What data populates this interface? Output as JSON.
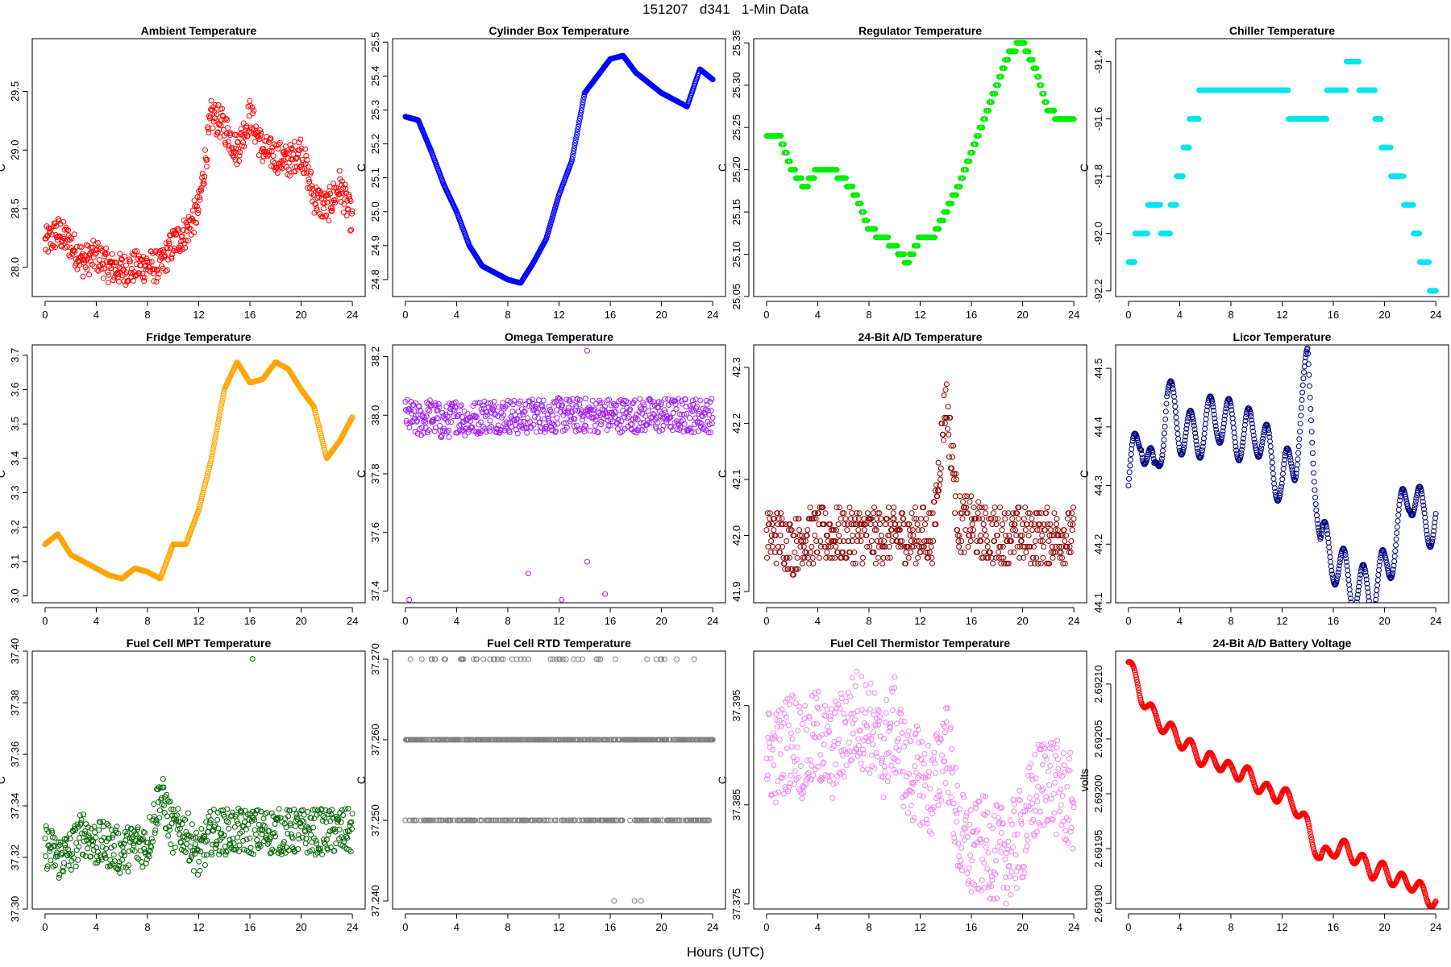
{
  "figure": {
    "title": "151207   d341   1-Min Data",
    "xlabel": "Hours (UTC)"
  },
  "chart_data": [
    {
      "type": "scatter",
      "title": "Ambient Temperature",
      "ylabel": "C",
      "color": "#ff0000",
      "x": [
        0,
        1,
        2,
        3,
        4,
        5,
        6,
        7,
        8,
        9,
        10,
        11,
        12,
        13,
        14,
        15,
        16,
        17,
        18,
        19,
        20,
        21,
        22,
        23,
        24
      ],
      "y": [
        28.2,
        28.3,
        28.2,
        28.05,
        28.1,
        28.0,
        27.98,
        28.0,
        28.02,
        28.0,
        28.2,
        28.3,
        28.5,
        29.3,
        29.2,
        29.0,
        29.3,
        29.0,
        28.95,
        28.9,
        29.0,
        28.6,
        28.5,
        28.7,
        28.4
      ],
      "ylim": [
        27.75,
        29.95
      ],
      "yticks": [
        28.0,
        28.5,
        29.0,
        29.5
      ],
      "yfmt": 1,
      "noise": 0.14
    },
    {
      "type": "scatter",
      "title": "Cylinder Box Temperature",
      "ylabel": "C",
      "color": "#0000ff",
      "x": [
        0,
        1,
        2,
        3,
        4,
        5,
        6,
        7,
        8,
        9,
        10,
        11,
        12,
        13,
        14,
        15,
        16,
        17,
        18,
        19,
        20,
        21,
        22,
        23,
        24
      ],
      "y": [
        25.28,
        25.27,
        25.18,
        25.08,
        25.0,
        24.9,
        24.84,
        24.82,
        24.8,
        24.79,
        24.85,
        24.92,
        25.05,
        25.15,
        25.35,
        25.4,
        25.45,
        25.46,
        25.41,
        25.38,
        25.35,
        25.33,
        25.31,
        25.42,
        25.39
      ],
      "ylim": [
        24.75,
        25.51
      ],
      "yticks": [
        24.8,
        24.9,
        25.0,
        25.1,
        25.2,
        25.3,
        25.4,
        25.5
      ],
      "yfmt": 1,
      "noise": 0.0
    },
    {
      "type": "scatter",
      "title": "Regulator Temperature",
      "ylabel": "C",
      "color": "#00ee00",
      "x": [
        0,
        1,
        2,
        3,
        4,
        5,
        6,
        7,
        8,
        9,
        10,
        11,
        12,
        13,
        14,
        15,
        16,
        17,
        18,
        19,
        20,
        21,
        22,
        23,
        24
      ],
      "y": [
        25.24,
        25.24,
        25.2,
        25.18,
        25.2,
        25.2,
        25.19,
        25.17,
        25.13,
        25.12,
        25.11,
        25.09,
        25.12,
        25.12,
        25.15,
        25.18,
        25.22,
        25.26,
        25.3,
        25.34,
        25.35,
        25.32,
        25.27,
        25.26,
        25.26
      ],
      "ylim": [
        25.05,
        25.355
      ],
      "yticks": [
        25.05,
        25.1,
        25.15,
        25.2,
        25.25,
        25.3,
        25.35
      ],
      "yfmt": 2,
      "noise": 0.0,
      "quant": 0.01
    },
    {
      "type": "scatter",
      "title": "Chiller Temperature",
      "ylabel": "C",
      "color": "#00e5ee",
      "x": [
        0,
        1,
        2,
        3,
        4,
        5,
        6,
        7,
        8,
        9,
        10,
        11,
        12,
        13,
        14,
        15,
        16,
        17,
        18,
        19,
        20,
        21,
        22,
        23,
        24
      ],
      "y": [
        -92.1,
        -92.0,
        -91.9,
        -92.0,
        -91.8,
        -91.6,
        -91.5,
        -91.5,
        -91.45,
        -91.55,
        -91.5,
        -91.55,
        -91.5,
        -91.6,
        -91.55,
        -91.6,
        -91.5,
        -91.45,
        -91.45,
        -91.5,
        -91.7,
        -91.8,
        -91.9,
        -92.1,
        -92.2
      ],
      "ylim": [
        -92.22,
        -91.32
      ],
      "yticks": [
        -92.2,
        -92.0,
        -91.8,
        -91.6,
        -91.4
      ],
      "yfmt": 1,
      "noise": 0.0,
      "quant": 0.1
    },
    {
      "type": "scatter",
      "title": "Fridge Temperature",
      "ylabel": "C",
      "color": "#ffa500",
      "x": [
        0,
        1,
        2,
        3,
        4,
        5,
        6,
        7,
        8,
        9,
        10,
        11,
        12,
        13,
        14,
        15,
        16,
        17,
        18,
        19,
        20,
        21,
        22,
        23,
        24
      ],
      "y": [
        3.15,
        3.18,
        3.12,
        3.1,
        3.08,
        3.06,
        3.05,
        3.08,
        3.07,
        3.05,
        3.15,
        3.15,
        3.25,
        3.4,
        3.6,
        3.68,
        3.62,
        3.63,
        3.68,
        3.66,
        3.6,
        3.55,
        3.4,
        3.45,
        3.52
      ],
      "ylim": [
        2.98,
        3.73
      ],
      "yticks": [
        3.0,
        3.1,
        3.2,
        3.3,
        3.4,
        3.5,
        3.6,
        3.7
      ],
      "yfmt": 1,
      "noise": 0.0
    },
    {
      "type": "scatter",
      "title": "Omega Temperature",
      "ylabel": "C",
      "color": "#a020f0",
      "x": [
        0,
        1,
        2,
        3,
        4,
        5,
        6,
        7,
        8,
        9,
        10,
        11,
        12,
        13,
        14,
        15,
        16,
        17,
        18,
        19,
        20,
        21,
        22,
        23,
        24
      ],
      "y": [
        38.0,
        37.98,
        38.0,
        37.97,
        38.0,
        37.98,
        38.0,
        38.0,
        38.0,
        37.99,
        38.0,
        38.0,
        38.0,
        38.0,
        38.0,
        38.0,
        38.0,
        38.0,
        38.0,
        38.0,
        38.0,
        38.0,
        38.0,
        38.0,
        38.0
      ],
      "ylim": [
        37.36,
        38.24
      ],
      "yticks": [
        37.4,
        37.6,
        37.8,
        38.0,
        38.2
      ],
      "yfmt": 1,
      "noise": 0.06,
      "outliers": [
        [
          0.3,
          37.37
        ],
        [
          9.6,
          37.46
        ],
        [
          12.2,
          37.37
        ],
        [
          14.2,
          37.5
        ],
        [
          15.6,
          37.39
        ],
        [
          14.2,
          38.22
        ]
      ]
    },
    {
      "type": "scatter",
      "title": "24-Bit A/D Temperature",
      "ylabel": "C",
      "color": "#8b0000",
      "x": [
        0,
        1,
        2,
        3,
        4,
        5,
        6,
        7,
        8,
        9,
        10,
        11,
        12,
        13,
        14,
        15,
        16,
        17,
        18,
        19,
        20,
        21,
        22,
        23,
        24
      ],
      "y": [
        42.0,
        42.0,
        41.98,
        42.0,
        42.0,
        42.0,
        42.0,
        42.0,
        42.0,
        42.0,
        42.0,
        42.0,
        42.0,
        42.0,
        42.25,
        42.02,
        42.02,
        42.0,
        42.0,
        42.0,
        42.0,
        42.0,
        42.0,
        42.0,
        42.0
      ],
      "ylim": [
        41.88,
        42.34
      ],
      "yticks": [
        41.9,
        42.0,
        42.1,
        42.2,
        42.3
      ],
      "yfmt": 1,
      "noise": 0.05,
      "quant": 0.01
    },
    {
      "type": "scatter",
      "title": "Licor Temperature",
      "ylabel": "C",
      "color": "#000080",
      "x": [
        0,
        1,
        2,
        3,
        4,
        5,
        6,
        7,
        8,
        9,
        10,
        11,
        12,
        13,
        14,
        15,
        16,
        17,
        18,
        19,
        20,
        21,
        22,
        23,
        24
      ],
      "y": [
        44.3,
        44.4,
        44.3,
        44.45,
        44.4,
        44.38,
        44.4,
        44.42,
        44.4,
        44.38,
        44.4,
        44.35,
        44.3,
        44.35,
        44.5,
        44.2,
        44.18,
        44.14,
        44.12,
        44.12,
        44.15,
        44.22,
        44.3,
        44.24,
        44.24
      ],
      "ylim": [
        44.1,
        44.54
      ],
      "yticks": [
        44.1,
        44.2,
        44.3,
        44.4,
        44.5
      ],
      "yfmt": 1,
      "noise": 0.0,
      "osc": 0.09
    },
    {
      "type": "scatter",
      "title": "Fuel Cell MPT Temperature",
      "ylabel": "C",
      "color": "#006400",
      "x": [
        0,
        1,
        2,
        3,
        4,
        5,
        6,
        7,
        8,
        9,
        10,
        11,
        12,
        13,
        14,
        15,
        16,
        17,
        18,
        19,
        20,
        21,
        22,
        23,
        24
      ],
      "y": [
        37.325,
        37.32,
        37.322,
        37.33,
        37.325,
        37.325,
        37.322,
        37.325,
        37.325,
        37.345,
        37.33,
        37.33,
        37.32,
        37.33,
        37.33,
        37.33,
        37.33,
        37.33,
        37.33,
        37.33,
        37.33,
        37.33,
        37.33,
        37.33,
        37.33
      ],
      "ylim": [
        37.3,
        37.4
      ],
      "yticks": [
        37.3,
        37.32,
        37.34,
        37.36,
        37.38,
        37.4
      ],
      "yfmt": 2,
      "noise": 0.009,
      "outliers": [
        [
          16.2,
          37.397
        ]
      ]
    },
    {
      "type": "scatter",
      "title": "Fuel Cell RTD Temperature",
      "ylabel": "C",
      "color": "#808080",
      "x": [
        0,
        24
      ],
      "y": [
        37.26,
        37.26
      ],
      "ylim": [
        37.239,
        37.271
      ],
      "yticks": [
        37.24,
        37.25,
        37.26,
        37.27
      ],
      "yfmt": 3,
      "noise": 0.0,
      "levels": [
        37.25,
        37.26,
        37.27
      ],
      "outliers": [
        [
          16.3,
          37.24
        ],
        [
          17.9,
          37.24
        ],
        [
          18.4,
          37.24
        ]
      ]
    },
    {
      "type": "scatter",
      "title": "Fuel Cell Thermistor Temperature",
      "ylabel": "C",
      "color": "#ee82ee",
      "x": [
        0,
        1,
        2,
        3,
        4,
        5,
        6,
        7,
        8,
        9,
        10,
        11,
        12,
        13,
        14,
        15,
        16,
        17,
        18,
        19,
        20,
        21,
        22,
        23,
        24
      ],
      "y": [
        37.39,
        37.39,
        37.392,
        37.39,
        37.392,
        37.39,
        37.392,
        37.394,
        37.393,
        37.39,
        37.393,
        37.388,
        37.388,
        37.386,
        37.392,
        37.382,
        37.38,
        37.381,
        37.38,
        37.38,
        37.382,
        37.386,
        37.388,
        37.386,
        37.385
      ],
      "ylim": [
        37.3745,
        37.4005
      ],
      "yticks": [
        37.375,
        37.385,
        37.395
      ],
      "yfmt": 3,
      "noise": 0.005
    },
    {
      "type": "scatter",
      "title": "24-Bit A/D Battery Voltage",
      "ylabel": "volts",
      "color": "#ff0000",
      "x": [
        0,
        1,
        2,
        3,
        4,
        5,
        6,
        7,
        8,
        9,
        10,
        11,
        12,
        13,
        14,
        15,
        16,
        17,
        18,
        19,
        20,
        21,
        22,
        23,
        24
      ],
      "y": [
        2.69212,
        2.69209,
        2.69207,
        2.69206,
        2.69205,
        2.69204,
        2.69203,
        2.69203,
        2.69202,
        2.69202,
        2.69201,
        2.692,
        2.692,
        2.69199,
        2.69197,
        2.69194,
        2.69195,
        2.69195,
        2.69194,
        2.69193,
        2.69193,
        2.69192,
        2.69192,
        2.69191,
        2.6919
      ],
      "ylim": [
        2.691895,
        2.69213
      ],
      "yticks": [
        2.6919,
        2.69195,
        2.692,
        2.69205,
        2.6921
      ],
      "yfmt": 5,
      "noise": 0.0,
      "osc": 1.5e-05
    }
  ]
}
